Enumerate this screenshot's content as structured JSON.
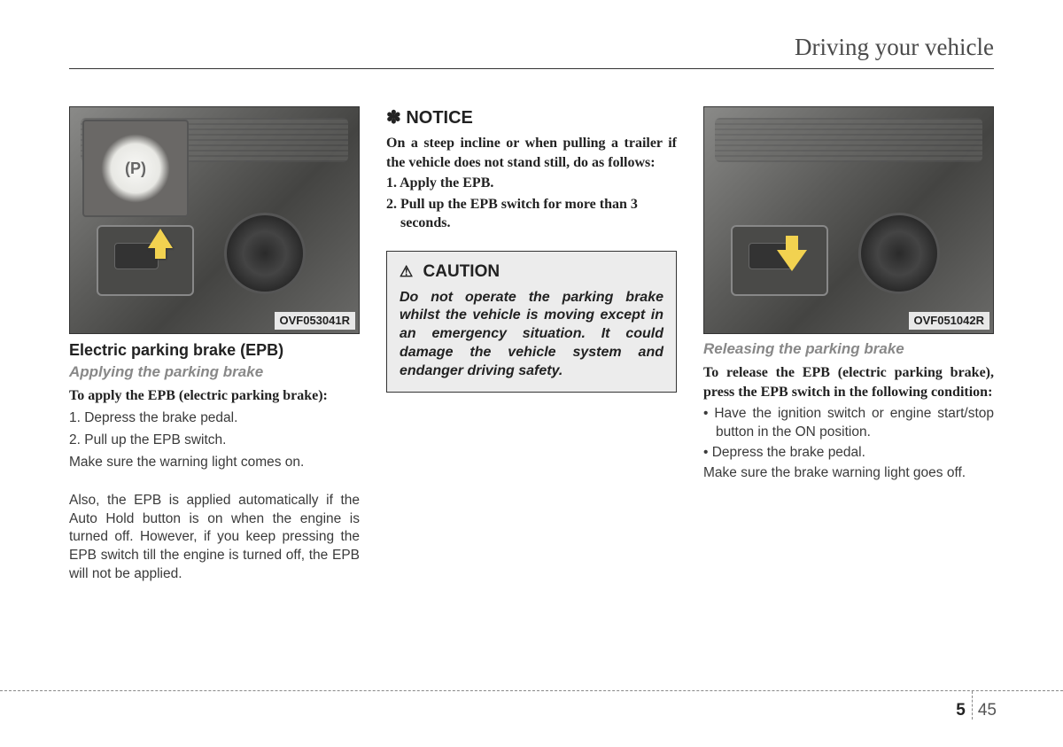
{
  "header": {
    "title": "Driving your vehicle"
  },
  "col1": {
    "img_code": "OVF053041R",
    "heading": "Electric parking brake (EPB)",
    "subheading": "Applying the parking brake",
    "lead": "To apply the EPB (electric parking brake):",
    "step1": "1. Depress the brake pedal.",
    "step2": "2. Pull up the EPB switch.",
    "note": "Make sure the warning light comes on.",
    "para": "Also, the EPB is applied automatically if the Auto Hold button is on when the engine is turned off. However, if you keep pressing the EPB switch till the engine is turned off, the EPB will not be applied."
  },
  "col2": {
    "notice_sym": "✽",
    "notice_label": "NOTICE",
    "notice_body": "On a steep incline or when pulling a trailer if the vehicle does not stand still, do as follows:",
    "notice1": "1. Apply the EPB.",
    "notice2": "2. Pull up the EPB switch for more than 3 seconds.",
    "caution_sym": "⚠",
    "caution_label": "CAUTION",
    "caution_body": "Do not operate the parking brake whilst the vehicle is moving except in an emergency situation. It could damage the vehicle system and endanger driving safety."
  },
  "col3": {
    "img_code": "OVF051042R",
    "subheading": "Releasing the parking brake",
    "lead": "To release the EPB (electric parking brake), press the EPB switch in the following condition:",
    "b1": "• Have the ignition switch or engine start/stop button in the ON position.",
    "b2": "• Depress the brake pedal.",
    "note": "Make sure the brake warning light goes off."
  },
  "footer": {
    "section": "5",
    "page": "45"
  }
}
